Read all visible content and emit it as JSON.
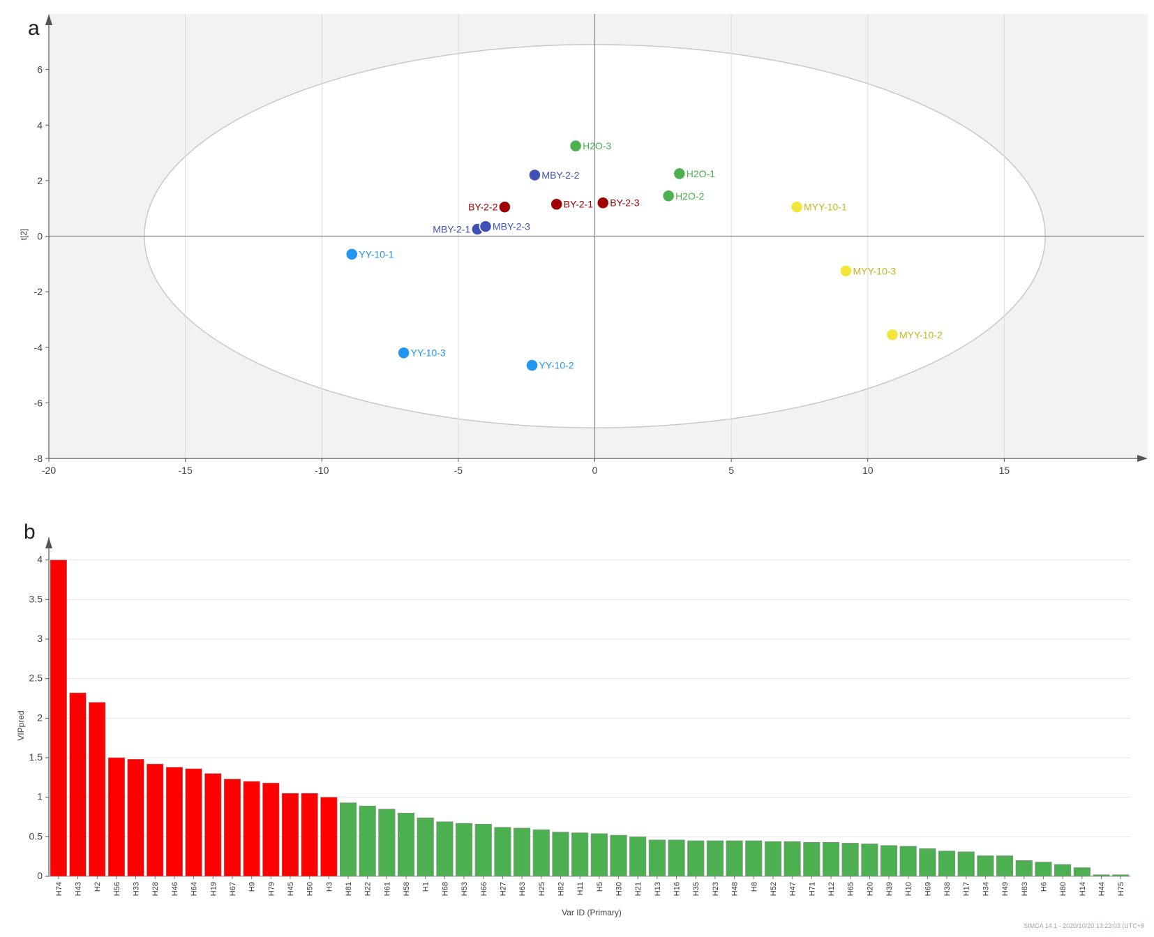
{
  "chart_data": [
    {
      "type": "scatter",
      "panel_label": "a",
      "ylabel": "t[2]",
      "xlim": [
        -20,
        20
      ],
      "ylim": [
        -8,
        8
      ],
      "xticks": [
        -20,
        -15,
        -10,
        -5,
        0,
        5,
        10,
        15
      ],
      "yticks": [
        -8,
        -6,
        -4,
        -2,
        0,
        2,
        4,
        6
      ],
      "confidence_ellipse": {
        "center": [
          0,
          0
        ],
        "rx": 16.5,
        "ry": 6.9
      },
      "points": [
        {
          "label": "H2O-3",
          "x": -0.7,
          "y": 3.25,
          "color": "#4caf50"
        },
        {
          "label": "H2O-1",
          "x": 3.1,
          "y": 2.25,
          "color": "#4caf50"
        },
        {
          "label": "H2O-2",
          "x": 2.7,
          "y": 1.45,
          "color": "#4caf50"
        },
        {
          "label": "MBY-2-2",
          "x": -2.2,
          "y": 2.2,
          "color": "#3f51b5"
        },
        {
          "label": "MBY-2-1",
          "x": -4.3,
          "y": 0.25,
          "color": "#3f51b5"
        },
        {
          "label": "MBY-2-3",
          "x": -4.0,
          "y": 0.35,
          "color": "#3f51b5"
        },
        {
          "label": "BY-2-2",
          "x": -3.3,
          "y": 1.05,
          "color": "#a00000"
        },
        {
          "label": "BY-2-1",
          "x": -1.4,
          "y": 1.15,
          "color": "#a00000"
        },
        {
          "label": "BY-2-3",
          "x": 0.3,
          "y": 1.2,
          "color": "#a00000"
        },
        {
          "label": "MYY-10-1",
          "x": 7.4,
          "y": 1.05,
          "color": "#f3e53b"
        },
        {
          "label": "MYY-10-3",
          "x": 9.2,
          "y": -1.25,
          "color": "#f3e53b"
        },
        {
          "label": "MYY-10-2",
          "x": 10.9,
          "y": -3.55,
          "color": "#f3e53b"
        },
        {
          "label": "YY-10-1",
          "x": -8.9,
          "y": -0.65,
          "color": "#2196f3"
        },
        {
          "label": "YY-10-3",
          "x": -7.0,
          "y": -4.2,
          "color": "#2196f3"
        },
        {
          "label": "YY-10-2",
          "x": -2.3,
          "y": -4.65,
          "color": "#2196f3"
        }
      ]
    },
    {
      "type": "bar",
      "panel_label": "b",
      "ylabel": "VIPpred",
      "xlabel": "Var ID (Primary)",
      "ylim": [
        0,
        4.2
      ],
      "yticks": [
        "0",
        "0.5",
        "1",
        "1.5",
        "2",
        "2.5",
        "3",
        "3.5",
        "4"
      ],
      "threshold": 1,
      "colors": {
        "above": "#ff0000",
        "below": "#4caf50"
      },
      "categories": [
        "H74",
        "H43",
        "H2",
        "H56",
        "H33",
        "H28",
        "H46",
        "H64",
        "H19",
        "H67",
        "H9",
        "H79",
        "H45",
        "H50",
        "H3",
        "H81",
        "H22",
        "H61",
        "H58",
        "H1",
        "H68",
        "H53",
        "H66",
        "H27",
        "H63",
        "H25",
        "H82",
        "H11",
        "H5",
        "H30",
        "H21",
        "H13",
        "H16",
        "H35",
        "H23",
        "H48",
        "H8",
        "H52",
        "H47",
        "H71",
        "H12",
        "H65",
        "H20",
        "H39",
        "H10",
        "H69",
        "H38",
        "H17",
        "H34",
        "H49",
        "H83",
        "H6",
        "H80",
        "H14",
        "H44",
        "H75"
      ],
      "values": [
        4.0,
        2.32,
        2.2,
        1.5,
        1.48,
        1.42,
        1.38,
        1.36,
        1.3,
        1.23,
        1.2,
        1.18,
        1.05,
        1.05,
        1.0,
        0.93,
        0.89,
        0.85,
        0.8,
        0.74,
        0.69,
        0.67,
        0.66,
        0.62,
        0.61,
        0.59,
        0.56,
        0.55,
        0.54,
        0.52,
        0.5,
        0.46,
        0.46,
        0.45,
        0.45,
        0.45,
        0.45,
        0.44,
        0.44,
        0.43,
        0.43,
        0.42,
        0.41,
        0.39,
        0.38,
        0.35,
        0.32,
        0.31,
        0.26,
        0.26,
        0.2,
        0.18,
        0.15,
        0.11,
        0.02,
        0.02
      ],
      "footer": "SIMCA 14.1 - 2020/10/20 13:23:03 (UTC+8"
    }
  ]
}
